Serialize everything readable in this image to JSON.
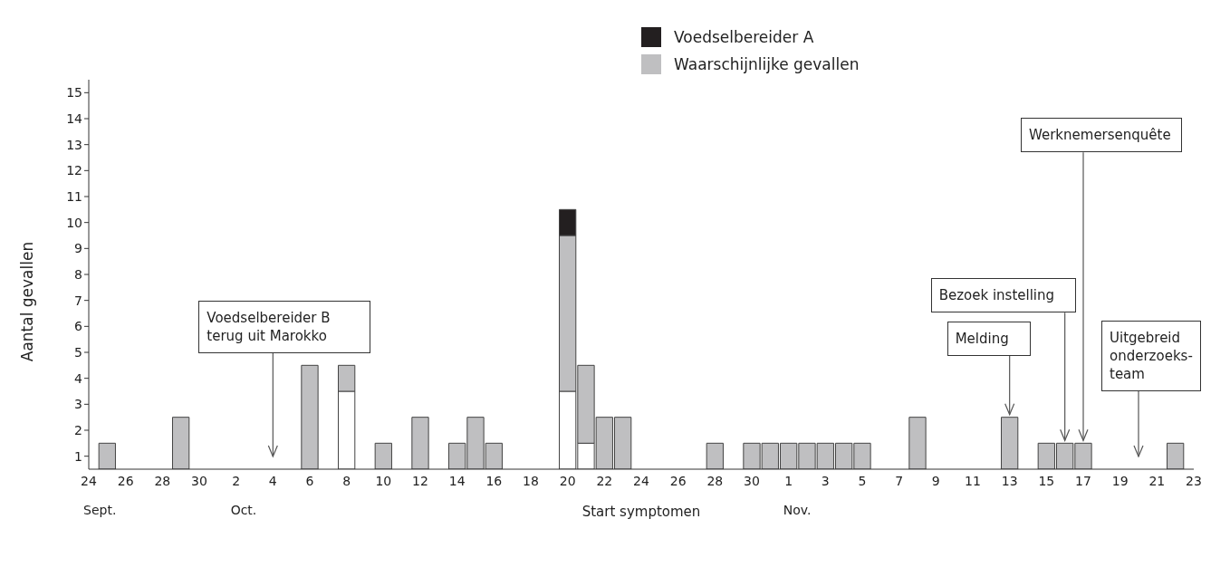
{
  "chart_data": {
    "type": "bar",
    "stacked": true,
    "x": [
      "--09-25",
      "--09-29",
      "--10-06",
      "--10-08",
      "--10-10",
      "--10-12",
      "--10-14",
      "--10-15",
      "--10-16",
      "--10-20",
      "--10-21",
      "--10-22",
      "--10-23",
      "--10-28",
      "--10-30",
      "--10-31",
      "--11-01",
      "--11-02",
      "--11-03",
      "--11-04",
      "--11-05",
      "--11-08",
      "--11-13",
      "--11-15",
      "--11-16",
      "--11-17",
      "--11-22"
    ],
    "series": [
      {
        "color": "#ffffff",
        "values": [
          null,
          null,
          null,
          3,
          null,
          null,
          null,
          null,
          null,
          3,
          1,
          null,
          null,
          null,
          null,
          null,
          null,
          null,
          null,
          null,
          null,
          null,
          null,
          null,
          null,
          null,
          null
        ]
      },
      {
        "name": "Waarschijnlijke gevallen",
        "color": "#bfbfc1",
        "values": [
          1,
          2,
          4,
          1,
          1,
          2,
          1,
          2,
          1,
          6,
          3,
          2,
          2,
          1,
          1,
          1,
          1,
          1,
          1,
          1,
          1,
          2,
          2,
          1,
          1,
          1,
          1
        ]
      },
      {
        "name": "Voedselbereider A",
        "color": "#231f20",
        "values": [
          null,
          null,
          null,
          null,
          null,
          null,
          null,
          null,
          null,
          1,
          null,
          null,
          null,
          null,
          null,
          null,
          null,
          null,
          null,
          null,
          null,
          null,
          null,
          null,
          null,
          null,
          null
        ]
      }
    ],
    "xlim": [
      "--09-24",
      "--11-23"
    ],
    "xticks": [
      {
        "value": "--09-24",
        "label": "24"
      },
      {
        "value": "--09-26",
        "label": "26"
      },
      {
        "value": "--09-28",
        "label": "28"
      },
      {
        "value": "--09-30",
        "label": "30"
      },
      {
        "value": "--10-02",
        "label": "2"
      },
      {
        "value": "--10-04",
        "label": "4"
      },
      {
        "value": "--10-06",
        "label": "6"
      },
      {
        "value": "--10-08",
        "label": "8"
      },
      {
        "value": "--10-10",
        "label": "10"
      },
      {
        "value": "--10-12",
        "label": "12"
      },
      {
        "value": "--10-14",
        "label": "14"
      },
      {
        "value": "--10-16",
        "label": "16"
      },
      {
        "value": "--10-18",
        "label": "18"
      },
      {
        "value": "--10-20",
        "label": "20"
      },
      {
        "value": "--10-22",
        "label": "22"
      },
      {
        "value": "--10-24",
        "label": "24"
      },
      {
        "value": "--10-26",
        "label": "26"
      },
      {
        "value": "--10-28",
        "label": "28"
      },
      {
        "value": "--10-30",
        "label": "30"
      },
      {
        "value": "--11-01",
        "label": "1"
      },
      {
        "value": "--11-03",
        "label": "3"
      },
      {
        "value": "--11-05",
        "label": "5"
      },
      {
        "value": "--11-07",
        "label": "7"
      },
      {
        "value": "--11-09",
        "label": "9"
      },
      {
        "value": "--11-11",
        "label": "11"
      },
      {
        "value": "--11-13",
        "label": "13"
      },
      {
        "value": "--11-15",
        "label": "15"
      },
      {
        "value": "--11-17",
        "label": "17"
      },
      {
        "value": "--11-19",
        "label": "19"
      },
      {
        "value": "--11-21",
        "label": "21"
      },
      {
        "value": "--11-23",
        "label": "23"
      }
    ],
    "ylim": [
      0,
      15
    ],
    "yticks": [
      {
        "value": 0.5,
        "label": "1"
      },
      {
        "value": 1.5,
        "label": "2"
      },
      {
        "value": 2.5,
        "label": "3"
      },
      {
        "value": 3.5,
        "label": "4"
      },
      {
        "value": 4.5,
        "label": "5"
      },
      {
        "value": 5.5,
        "label": "6"
      },
      {
        "value": 6.5,
        "label": "7"
      },
      {
        "value": 7.5,
        "label": "8"
      },
      {
        "value": 8.5,
        "label": "9"
      },
      {
        "value": 9.5,
        "label": "10"
      },
      {
        "value": 10.5,
        "label": "11"
      },
      {
        "value": 11.5,
        "label": "12"
      },
      {
        "value": 12.5,
        "label": "13"
      },
      {
        "value": 13.5,
        "label": "14"
      },
      {
        "value": 14.5,
        "label": "15"
      }
    ],
    "xlabel": "Start symptomen",
    "ylabel": "Aantal gevallen",
    "legend": "top",
    "grid": false,
    "ref_lines": [
      {
        "axis": "x",
        "value": "--10-04",
        "label": "Voedselbereider B terug uit Marokko"
      },
      {
        "axis": "x",
        "value": "--11-13",
        "label": "Melding"
      },
      {
        "axis": "x",
        "value": "--11-16",
        "label": "Bezoek instelling"
      },
      {
        "axis": "x",
        "value": "--11-17",
        "label": "Werknemersenquête"
      },
      {
        "axis": "x",
        "value": "--11-20",
        "label": "Uitgebreid onderzoeks-team"
      }
    ],
    "annotations": [
      "Sept.",
      "Oct.",
      "Nov."
    ]
  }
}
